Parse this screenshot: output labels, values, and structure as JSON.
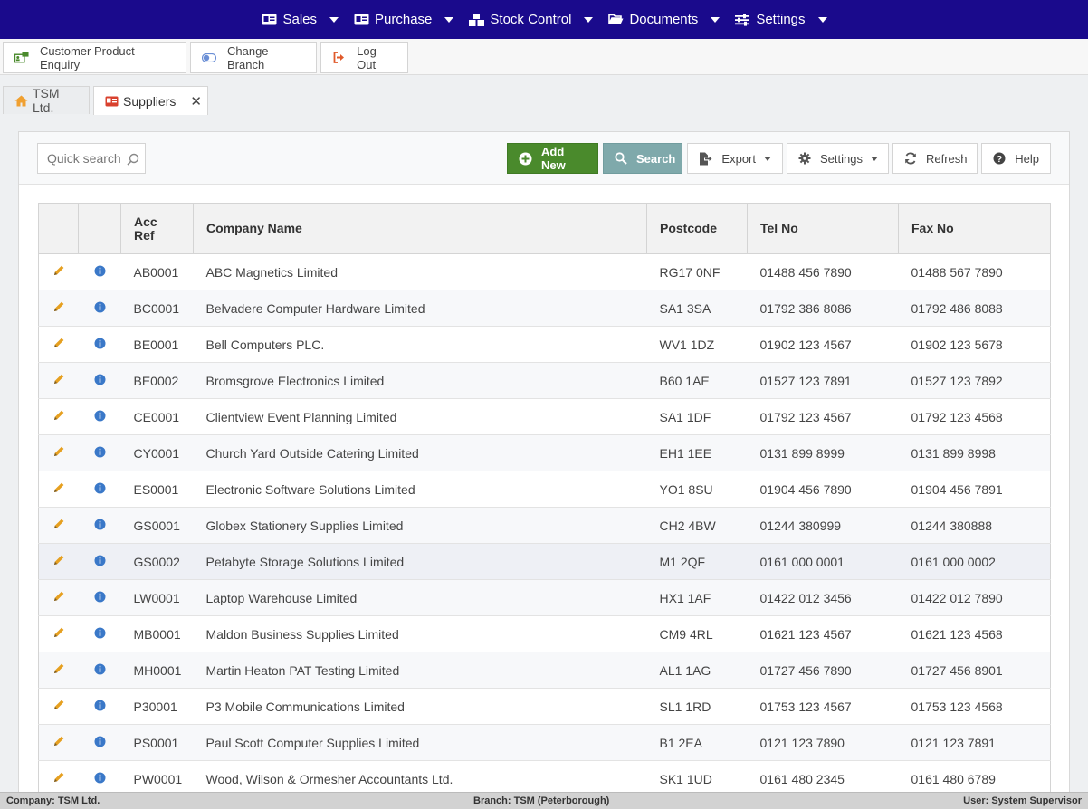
{
  "nav": {
    "items": [
      {
        "label": "Sales",
        "icon": "id-card-icon"
      },
      {
        "label": "Purchase",
        "icon": "id-card-icon"
      },
      {
        "label": "Stock Control",
        "icon": "boxes-icon"
      },
      {
        "label": "Documents",
        "icon": "folder-open-icon"
      },
      {
        "label": "Settings",
        "icon": "sliders-icon"
      }
    ]
  },
  "actions": {
    "enquiry": "Customer Product Enquiry",
    "change_branch": "Change Branch",
    "logout": "Log Out"
  },
  "tabs": {
    "home": "TSM Ltd.",
    "suppliers": "Suppliers",
    "close": "✕"
  },
  "toolbar": {
    "search_placeholder": "Quick search",
    "add_new": "Add New",
    "search": "Search",
    "export": "Export",
    "settings": "Settings",
    "refresh": "Refresh",
    "help": "Help"
  },
  "grid": {
    "columns": {
      "acc_ref": "Acc Ref",
      "company": "Company Name",
      "postcode": "Postcode",
      "tel": "Tel No",
      "fax": "Fax No"
    },
    "rows": [
      {
        "acc": "AB0001",
        "company": "ABC Magnetics Limited",
        "postcode": "RG17 0NF",
        "tel": "01488 456 7890",
        "fax": "01488 567 7890"
      },
      {
        "acc": "BC0001",
        "company": "Belvadere Computer Hardware Limited",
        "postcode": "SA1 3SA",
        "tel": "01792 386 8086",
        "fax": "01792 486 8088"
      },
      {
        "acc": "BE0001",
        "company": "Bell Computers PLC.",
        "postcode": "WV1 1DZ",
        "tel": "01902 123 4567",
        "fax": "01902 123 5678"
      },
      {
        "acc": "BE0002",
        "company": "Bromsgrove Electronics Limited",
        "postcode": "B60 1AE",
        "tel": "01527 123 7891",
        "fax": "01527 123 7892"
      },
      {
        "acc": "CE0001",
        "company": "Clientview Event Planning Limited",
        "postcode": "SA1 1DF",
        "tel": "01792 123 4567",
        "fax": "01792 123 4568"
      },
      {
        "acc": "CY0001",
        "company": "Church Yard Outside Catering Limited",
        "postcode": "EH1 1EE",
        "tel": "0131 899 8999",
        "fax": "0131 899 8998"
      },
      {
        "acc": "ES0001",
        "company": "Electronic Software Solutions Limited",
        "postcode": "YO1 8SU",
        "tel": "01904 456 7890",
        "fax": "01904 456 7891"
      },
      {
        "acc": "GS0001",
        "company": "Globex Stationery Supplies Limited",
        "postcode": "CH2 4BW",
        "tel": "01244 380999",
        "fax": "01244 380888"
      },
      {
        "acc": "GS0002",
        "company": "Petabyte Storage Solutions Limited",
        "postcode": "M1 2QF",
        "tel": "0161 000 0001",
        "fax": "0161 000 0002"
      },
      {
        "acc": "LW0001",
        "company": "Laptop Warehouse Limited",
        "postcode": "HX1 1AF",
        "tel": "01422 012 3456",
        "fax": "01422 012 7890"
      },
      {
        "acc": "MB0001",
        "company": "Maldon Business Supplies Limited",
        "postcode": "CM9 4RL",
        "tel": "01621 123 4567",
        "fax": "01621 123 4568"
      },
      {
        "acc": "MH0001",
        "company": "Martin Heaton PAT Testing Limited",
        "postcode": "AL1 1AG",
        "tel": "01727 456 7890",
        "fax": "01727 456 8901"
      },
      {
        "acc": "P30001",
        "company": "P3 Mobile Communications Limited",
        "postcode": "SL1 1RD",
        "tel": "01753 123 4567",
        "fax": "01753 123 4568"
      },
      {
        "acc": "PS0001",
        "company": "Paul Scott Computer Supplies Limited",
        "postcode": "B1 2EA",
        "tel": "0121 123 7890",
        "fax": "0121 123 7891"
      },
      {
        "acc": "PW0001",
        "company": "Wood, Wilson & Ormesher Accountants Ltd.",
        "postcode": "SK1 1UD",
        "tel": "0161 480 2345",
        "fax": "0161 480 6789"
      }
    ]
  },
  "status": {
    "company": "Company: TSM Ltd.",
    "branch": "Branch: TSM (Peterborough)",
    "user": "User: System Supervisor"
  },
  "colors": {
    "nav_bg": "#1a0a8c",
    "add_new": "#4a8a2c",
    "search": "#7fa9ab",
    "edit_icon": "#e6a020",
    "info_icon": "#3a78c8"
  }
}
